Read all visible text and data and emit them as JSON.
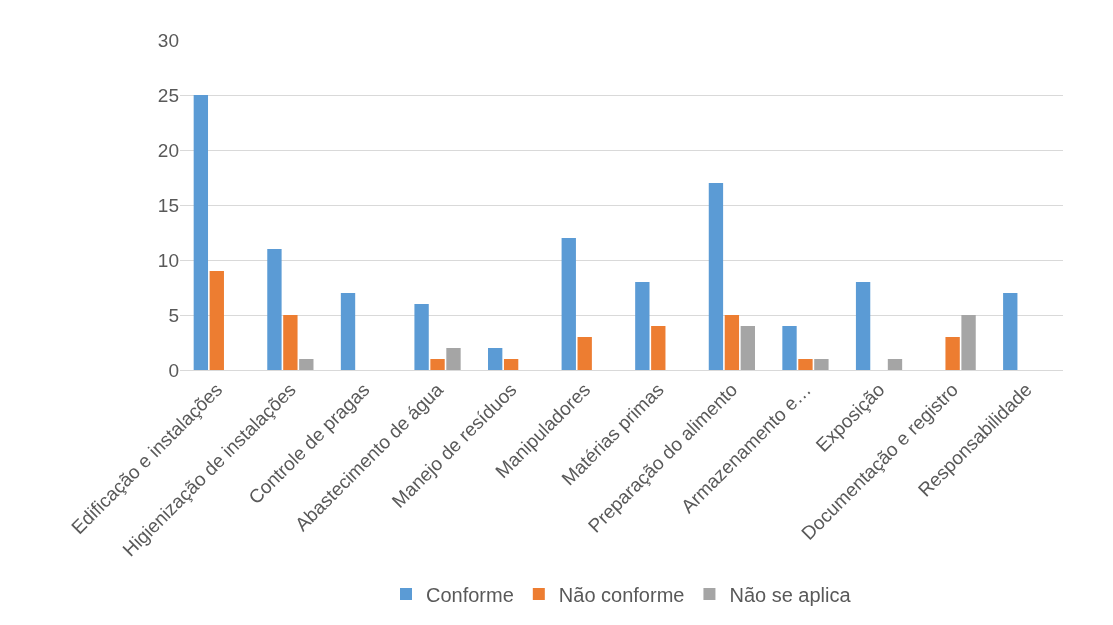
{
  "chart_data": {
    "type": "bar",
    "categories": [
      "Edificação e instalações",
      "Higienização de instalações",
      "Controle de pragas",
      "Abastecimento de água",
      "Manejo de resíduos",
      "Manipuladores",
      "Matérias primas",
      "Preparação do alimento",
      "Armazenamento e…",
      "Exposição",
      "Documentação e registro",
      "Responsabilidade"
    ],
    "series": [
      {
        "name": "Conforme",
        "color": "#5b9bd5",
        "values": [
          25,
          11,
          7,
          6,
          2,
          12,
          8,
          17,
          4,
          8,
          0,
          7
        ]
      },
      {
        "name": "Não conforme",
        "color": "#ed7d31",
        "values": [
          9,
          5,
          0,
          1,
          1,
          3,
          4,
          5,
          1,
          0,
          3,
          0
        ]
      },
      {
        "name": "Não se aplica",
        "color": "#a5a5a5",
        "values": [
          0,
          1,
          0,
          2,
          0,
          0,
          0,
          4,
          1,
          1,
          5,
          0
        ]
      }
    ],
    "ylim": [
      0,
      30
    ],
    "yticks": [
      0,
      5,
      10,
      15,
      20,
      25,
      30
    ],
    "grid": "y",
    "legend": "bottom"
  }
}
